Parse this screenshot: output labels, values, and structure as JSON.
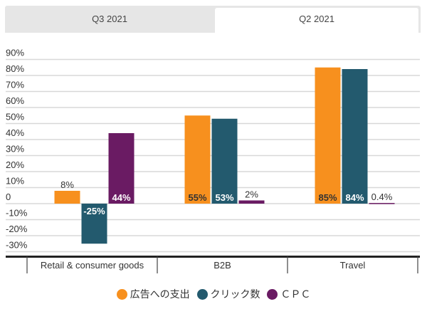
{
  "tabs": [
    {
      "label": "Q3 2021",
      "active": false
    },
    {
      "label": "Q2 2021",
      "active": true
    }
  ],
  "chart_data": {
    "type": "bar",
    "categories": [
      "Retail & consumer goods",
      "B2B",
      "Travel"
    ],
    "series": [
      {
        "name": "広告への支出",
        "color": "#f7901e",
        "values": [
          8,
          55,
          85
        ],
        "labels": [
          "8%",
          "55%",
          "85%"
        ]
      },
      {
        "name": "クリック数",
        "color": "#235a6e",
        "values": [
          -25,
          53,
          84
        ],
        "labels": [
          "-25%",
          "53%",
          "84%"
        ]
      },
      {
        "name": "ＣＰＣ",
        "color": "#6a1b63",
        "values": [
          44,
          2,
          0.4
        ],
        "labels": [
          "44%",
          "2%",
          "0.4%"
        ]
      }
    ],
    "yticks": [
      "90%",
      "80%",
      "70%",
      "60%",
      "50%",
      "40%",
      "30%",
      "20%",
      "10%",
      "0",
      "-10%",
      "-20%",
      "-30%"
    ],
    "ylim": [
      -30,
      90
    ],
    "grid": true,
    "legend": "bottom"
  }
}
